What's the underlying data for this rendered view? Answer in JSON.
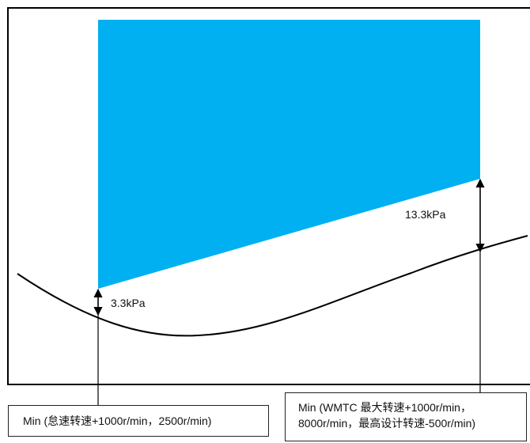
{
  "annotations": {
    "low_gap": "3.3kPa",
    "high_gap": "13.3kPa"
  },
  "labels": {
    "left_box": "Min (怠速转速+1000r/min，2500r/min)",
    "right_box_line1": "Min (WMTC 最大转速+1000r/min，",
    "right_box_line2": "8000r/min，最高设计转速-500r/min)"
  },
  "colors": {
    "region_fill": "#00b0f0",
    "line": "#000000"
  }
}
